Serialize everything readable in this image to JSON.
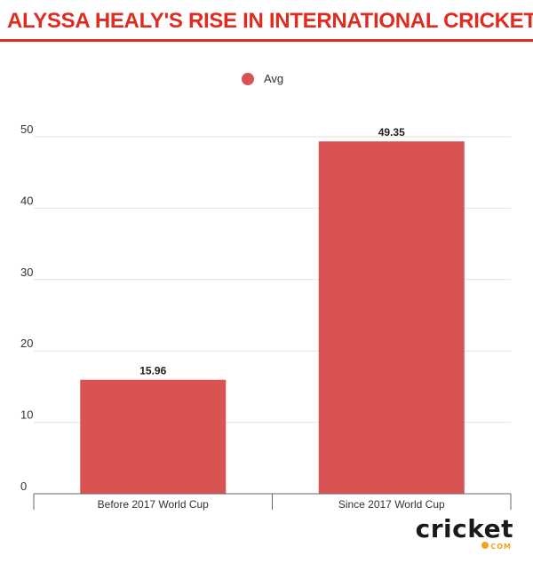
{
  "colors": {
    "title": "#e02b20",
    "bar": "#d95353",
    "grid": "#e2e2e2",
    "axis": "#666666",
    "text": "#333333",
    "logo_accent": "#f4a11d"
  },
  "logo": {
    "word": "cricket",
    "sub": "COM"
  },
  "chart_data": {
    "type": "bar",
    "title": "ALYSSA HEALY'S RISE IN INTERNATIONAL CRICKET",
    "categories": [
      "Before 2017 World Cup",
      "Since 2017 World Cup"
    ],
    "series": [
      {
        "name": "Avg",
        "values": [
          15.96,
          49.35
        ]
      }
    ],
    "data_labels": [
      "15.96",
      "49.35"
    ],
    "ylim": [
      0,
      50
    ],
    "yticks": [
      0,
      10,
      20,
      30,
      40,
      50
    ],
    "xlabel": "",
    "ylabel": "",
    "legend": "top-center",
    "grid": true
  }
}
